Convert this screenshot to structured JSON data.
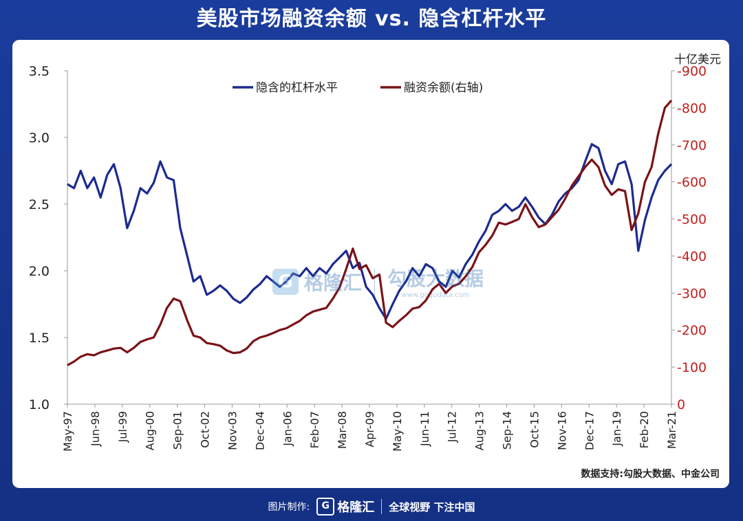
{
  "header": {
    "title": "美股市场融资余额 vs. 隐含杠杆水平"
  },
  "watermark": {
    "brand": "格隆汇",
    "text": "勾股大数据",
    "url": "www.gogudata.com"
  },
  "footer": {
    "label": "图片制作:",
    "brand": "格隆汇",
    "slogan": "全球视野 下注中国"
  },
  "colors": {
    "leverage": "#1c2a8f",
    "margin": "#7a1216",
    "right_axis": "#c0211f"
  },
  "chart_data": {
    "type": "line",
    "unit_right": "十亿美元",
    "source": "数据支持:勾股大数据、中金公司",
    "x_labels": [
      "May-97",
      "Jun-98",
      "Jul-99",
      "Aug-00",
      "Sep-01",
      "Oct-02",
      "Nov-03",
      "Dec-04",
      "Jan-06",
      "Feb-07",
      "Mar-08",
      "Apr-09",
      "May-10",
      "Jun-11",
      "Jul-12",
      "Aug-13",
      "Sep-14",
      "Oct-15",
      "Nov-16",
      "Dec-17",
      "Jan-19",
      "Feb-20",
      "Mar-21"
    ],
    "y_left": {
      "min": 1.0,
      "max": 3.5,
      "ticks": [
        "1.0",
        "1.5",
        "2.0",
        "2.5",
        "3.0",
        "3.5"
      ]
    },
    "y_right": {
      "min": 0,
      "max": 900,
      "ticks": [
        "0",
        "-100",
        "-200",
        "-300",
        "-400",
        "-500",
        "-600",
        "-700",
        "-800",
        "-900"
      ]
    },
    "legend_position": "top",
    "series": [
      {
        "name": "隐含的杠杆水平",
        "axis": "left",
        "points": [
          [
            0,
            2.65
          ],
          [
            2,
            2.62
          ],
          [
            4,
            2.75
          ],
          [
            6,
            2.62
          ],
          [
            8,
            2.7
          ],
          [
            10,
            2.55
          ],
          [
            12,
            2.72
          ],
          [
            14,
            2.8
          ],
          [
            16,
            2.62
          ],
          [
            18,
            2.32
          ],
          [
            20,
            2.45
          ],
          [
            22,
            2.62
          ],
          [
            24,
            2.58
          ],
          [
            26,
            2.66
          ],
          [
            28,
            2.82
          ],
          [
            30,
            2.7
          ],
          [
            32,
            2.68
          ],
          [
            34,
            2.32
          ],
          [
            36,
            2.12
          ],
          [
            38,
            1.92
          ],
          [
            40,
            1.96
          ],
          [
            42,
            1.82
          ],
          [
            44,
            1.85
          ],
          [
            46,
            1.89
          ],
          [
            48,
            1.85
          ],
          [
            50,
            1.79
          ],
          [
            52,
            1.76
          ],
          [
            54,
            1.8
          ],
          [
            56,
            1.86
          ],
          [
            58,
            1.9
          ],
          [
            60,
            1.96
          ],
          [
            62,
            1.92
          ],
          [
            64,
            1.88
          ],
          [
            66,
            1.92
          ],
          [
            68,
            1.98
          ],
          [
            70,
            1.96
          ],
          [
            72,
            2.02
          ],
          [
            74,
            1.96
          ],
          [
            76,
            2.02
          ],
          [
            78,
            1.98
          ],
          [
            80,
            2.05
          ],
          [
            82,
            2.1
          ],
          [
            84,
            2.15
          ],
          [
            86,
            2.02
          ],
          [
            88,
            2.06
          ],
          [
            90,
            1.88
          ],
          [
            92,
            1.82
          ],
          [
            94,
            1.72
          ],
          [
            96,
            1.64
          ],
          [
            98,
            1.75
          ],
          [
            100,
            1.85
          ],
          [
            102,
            1.92
          ],
          [
            104,
            2.02
          ],
          [
            106,
            1.96
          ],
          [
            108,
            2.05
          ],
          [
            110,
            2.02
          ],
          [
            112,
            1.92
          ],
          [
            114,
            1.88
          ],
          [
            116,
            2.0
          ],
          [
            118,
            1.95
          ],
          [
            120,
            2.05
          ],
          [
            122,
            2.12
          ],
          [
            124,
            2.22
          ],
          [
            126,
            2.3
          ],
          [
            128,
            2.42
          ],
          [
            130,
            2.45
          ],
          [
            132,
            2.5
          ],
          [
            134,
            2.45
          ],
          [
            136,
            2.48
          ],
          [
            138,
            2.55
          ],
          [
            140,
            2.48
          ],
          [
            142,
            2.4
          ],
          [
            144,
            2.35
          ],
          [
            146,
            2.42
          ],
          [
            148,
            2.52
          ],
          [
            150,
            2.58
          ],
          [
            152,
            2.62
          ],
          [
            154,
            2.68
          ],
          [
            156,
            2.82
          ],
          [
            158,
            2.95
          ],
          [
            160,
            2.92
          ],
          [
            162,
            2.75
          ],
          [
            164,
            2.65
          ],
          [
            166,
            2.8
          ],
          [
            168,
            2.82
          ],
          [
            170,
            2.65
          ],
          [
            172,
            2.15
          ],
          [
            174,
            2.38
          ],
          [
            176,
            2.55
          ],
          [
            178,
            2.68
          ],
          [
            180,
            2.75
          ],
          [
            182,
            2.8
          ]
        ]
      },
      {
        "name": "融资余额(右轴)",
        "axis": "right",
        "points": [
          [
            0,
            105
          ],
          [
            2,
            115
          ],
          [
            4,
            128
          ],
          [
            6,
            135
          ],
          [
            8,
            132
          ],
          [
            10,
            140
          ],
          [
            12,
            145
          ],
          [
            14,
            150
          ],
          [
            16,
            152
          ],
          [
            18,
            140
          ],
          [
            20,
            152
          ],
          [
            22,
            168
          ],
          [
            24,
            175
          ],
          [
            26,
            180
          ],
          [
            28,
            215
          ],
          [
            30,
            260
          ],
          [
            32,
            285
          ],
          [
            34,
            278
          ],
          [
            36,
            228
          ],
          [
            38,
            185
          ],
          [
            40,
            180
          ],
          [
            42,
            165
          ],
          [
            44,
            162
          ],
          [
            46,
            158
          ],
          [
            48,
            145
          ],
          [
            50,
            138
          ],
          [
            52,
            140
          ],
          [
            54,
            150
          ],
          [
            56,
            170
          ],
          [
            58,
            180
          ],
          [
            60,
            185
          ],
          [
            62,
            192
          ],
          [
            64,
            200
          ],
          [
            66,
            205
          ],
          [
            68,
            215
          ],
          [
            70,
            225
          ],
          [
            72,
            240
          ],
          [
            74,
            250
          ],
          [
            76,
            255
          ],
          [
            78,
            260
          ],
          [
            80,
            285
          ],
          [
            82,
            315
          ],
          [
            84,
            365
          ],
          [
            86,
            420
          ],
          [
            88,
            365
          ],
          [
            90,
            375
          ],
          [
            92,
            340
          ],
          [
            94,
            350
          ],
          [
            96,
            220
          ],
          [
            98,
            208
          ],
          [
            100,
            225
          ],
          [
            102,
            240
          ],
          [
            104,
            258
          ],
          [
            106,
            262
          ],
          [
            108,
            280
          ],
          [
            110,
            310
          ],
          [
            112,
            325
          ],
          [
            114,
            300
          ],
          [
            116,
            318
          ],
          [
            118,
            325
          ],
          [
            120,
            345
          ],
          [
            122,
            370
          ],
          [
            124,
            410
          ],
          [
            126,
            430
          ],
          [
            128,
            455
          ],
          [
            130,
            490
          ],
          [
            132,
            485
          ],
          [
            134,
            492
          ],
          [
            136,
            500
          ],
          [
            138,
            540
          ],
          [
            140,
            505
          ],
          [
            142,
            478
          ],
          [
            144,
            485
          ],
          [
            146,
            505
          ],
          [
            148,
            525
          ],
          [
            150,
            555
          ],
          [
            152,
            590
          ],
          [
            154,
            615
          ],
          [
            156,
            640
          ],
          [
            158,
            660
          ],
          [
            160,
            640
          ],
          [
            162,
            590
          ],
          [
            164,
            565
          ],
          [
            166,
            580
          ],
          [
            168,
            575
          ],
          [
            170,
            470
          ],
          [
            172,
            515
          ],
          [
            174,
            600
          ],
          [
            176,
            640
          ],
          [
            178,
            730
          ],
          [
            180,
            800
          ],
          [
            182,
            820
          ]
        ]
      }
    ]
  }
}
